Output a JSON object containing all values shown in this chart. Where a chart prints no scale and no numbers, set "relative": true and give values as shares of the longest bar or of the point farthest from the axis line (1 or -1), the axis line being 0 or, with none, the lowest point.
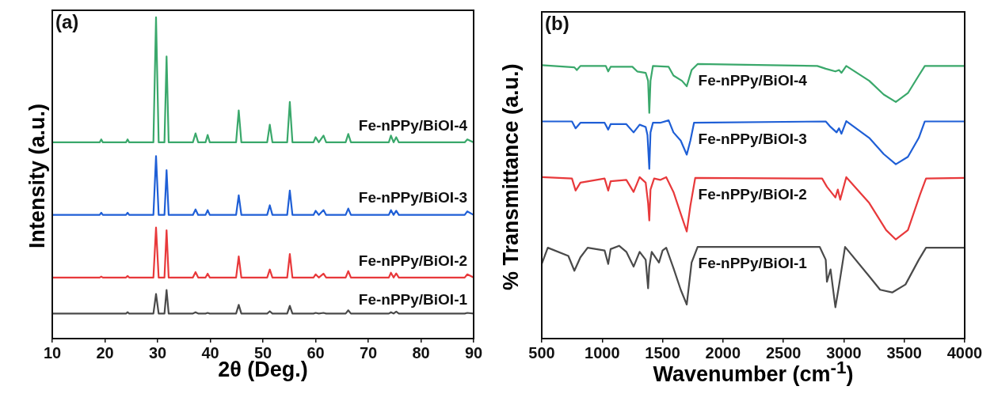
{
  "chart_data": [
    {
      "type": "line",
      "xlabel": "2θ (Deg.)",
      "ylabel": "Intensity (a.u.)",
      "annotations": [
        "(a)"
      ],
      "relative": true,
      "marker": "none",
      "xlim": [
        10,
        90
      ],
      "xticks": [
        10,
        20,
        30,
        40,
        50,
        60,
        70,
        80,
        90
      ],
      "x": [
        10,
        19.0,
        19.3,
        19.6,
        24.0,
        24.3,
        24.6,
        29.2,
        29.7,
        30.2,
        31.3,
        31.7,
        32.1,
        36.7,
        37.2,
        37.7,
        39.1,
        39.5,
        39.9,
        44.9,
        45.4,
        45.9,
        50.8,
        51.3,
        51.8,
        54.6,
        55.1,
        55.6,
        59.6,
        60.0,
        60.6,
        61.5,
        62.0,
        65.7,
        66.2,
        66.7,
        73.9,
        74.3,
        74.8,
        75.3,
        75.8,
        88.3,
        88.8,
        90
      ],
      "series": [
        {
          "name": "Fe-nPPy/BiOI-4",
          "color": "#3aa86b",
          "values": [
            0.611,
            0.611,
            0.62,
            0.611,
            0.611,
            0.62,
            0.611,
            0.611,
            1.0,
            0.611,
            0.611,
            0.878,
            0.611,
            0.611,
            0.639,
            0.611,
            0.611,
            0.634,
            0.611,
            0.611,
            0.71,
            0.611,
            0.611,
            0.666,
            0.611,
            0.611,
            0.737,
            0.611,
            0.611,
            0.627,
            0.611,
            0.632,
            0.611,
            0.611,
            0.637,
            0.611,
            0.611,
            0.632,
            0.611,
            0.627,
            0.611,
            0.611,
            0.62,
            0.611
          ]
        },
        {
          "name": "Fe-nPPy/BiOI-3",
          "color": "#1f5fd6",
          "values": [
            0.385,
            0.385,
            0.392,
            0.385,
            0.385,
            0.392,
            0.385,
            0.385,
            0.568,
            0.385,
            0.385,
            0.524,
            0.385,
            0.385,
            0.402,
            0.385,
            0.385,
            0.4,
            0.385,
            0.385,
            0.446,
            0.385,
            0.385,
            0.415,
            0.385,
            0.385,
            0.461,
            0.385,
            0.385,
            0.398,
            0.385,
            0.4,
            0.385,
            0.385,
            0.405,
            0.385,
            0.385,
            0.4,
            0.385,
            0.398,
            0.385,
            0.385,
            0.396,
            0.385
          ]
        },
        {
          "name": "Fe-nPPy/BiOI-2",
          "color": "#e8393b",
          "values": [
            0.19,
            0.19,
            0.193,
            0.19,
            0.19,
            0.195,
            0.19,
            0.19,
            0.346,
            0.19,
            0.19,
            0.337,
            0.19,
            0.19,
            0.207,
            0.19,
            0.19,
            0.202,
            0.19,
            0.19,
            0.256,
            0.19,
            0.19,
            0.215,
            0.19,
            0.19,
            0.263,
            0.19,
            0.19,
            0.2,
            0.19,
            0.202,
            0.19,
            0.19,
            0.21,
            0.19,
            0.19,
            0.205,
            0.19,
            0.203,
            0.19,
            0.19,
            0.2,
            0.19
          ]
        },
        {
          "name": "Fe-nPPy/BiOI-1",
          "color": "#4a4a4a",
          "values": [
            0.078,
            0.078,
            0.078,
            0.078,
            0.078,
            0.082,
            0.078,
            0.078,
            0.139,
            0.078,
            0.078,
            0.151,
            0.078,
            0.078,
            0.082,
            0.078,
            0.078,
            0.08,
            0.078,
            0.078,
            0.105,
            0.078,
            0.078,
            0.085,
            0.078,
            0.078,
            0.102,
            0.078,
            0.078,
            0.08,
            0.078,
            0.08,
            0.078,
            0.078,
            0.088,
            0.078,
            0.078,
            0.082,
            0.078,
            0.084,
            0.078,
            0.078,
            0.08,
            0.078
          ]
        }
      ]
    },
    {
      "type": "line",
      "xlabel": "Wavenumber (cm$^{-1}$)",
      "ylabel": "% Transmittance (a.u.)",
      "annotations": [
        "(b)"
      ],
      "relative": true,
      "marker": "none",
      "xlim": [
        500,
        4000
      ],
      "xticks": [
        500,
        1000,
        1500,
        2000,
        2500,
        3000,
        3500,
        4000
      ],
      "series": [
        {
          "name": "Fe-nPPy/BiOI-4",
          "color": "#3aa86b",
          "x": [
            500,
            770,
            790,
            820,
            1030,
            1050,
            1070,
            1250,
            1290,
            1360,
            1380,
            1390,
            1400,
            1420,
            1550,
            1590,
            1660,
            1700,
            1740,
            1790,
            2780,
            2850,
            2930,
            2960,
            2980,
            3020,
            3210,
            3330,
            3430,
            3530,
            3620,
            3670,
            4000
          ],
          "values": [
            0.996,
            0.988,
            0.978,
            0.993,
            0.993,
            0.973,
            0.99,
            0.99,
            0.973,
            0.968,
            0.939,
            0.822,
            0.939,
            0.993,
            0.99,
            0.958,
            0.939,
            0.919,
            0.978,
            1.0,
            0.993,
            0.983,
            0.973,
            0.978,
            0.968,
            0.993,
            0.939,
            0.889,
            0.862,
            0.894,
            0.958,
            0.993,
            0.993
          ]
        },
        {
          "name": "Fe-nPPy/BiOI-3",
          "color": "#1f5fd6",
          "x": [
            500,
            750,
            780,
            820,
            1020,
            1050,
            1070,
            1200,
            1260,
            1310,
            1360,
            1375,
            1390,
            1400,
            1420,
            1480,
            1550,
            1590,
            1650,
            1700,
            1730,
            1760,
            2850,
            2890,
            2940,
            2960,
            2980,
            3020,
            3210,
            3330,
            3430,
            3530,
            3620,
            3670,
            4000
          ],
          "values": [
            0.791,
            0.791,
            0.766,
            0.786,
            0.786,
            0.761,
            0.781,
            0.781,
            0.751,
            0.779,
            0.771,
            0.741,
            0.618,
            0.751,
            0.786,
            0.786,
            0.795,
            0.751,
            0.721,
            0.67,
            0.721,
            0.786,
            0.791,
            0.771,
            0.751,
            0.766,
            0.746,
            0.792,
            0.731,
            0.672,
            0.635,
            0.662,
            0.731,
            0.791,
            0.791
          ]
        },
        {
          "name": "Fe-nPPy/BiOI-2",
          "color": "#e8393b",
          "x": [
            500,
            750,
            780,
            820,
            1020,
            1050,
            1070,
            1200,
            1260,
            1310,
            1360,
            1380,
            1390,
            1400,
            1430,
            1480,
            1530,
            1590,
            1650,
            1700,
            1730,
            1770,
            2820,
            2860,
            2930,
            2950,
            2970,
            3020,
            3210,
            3350,
            3430,
            3530,
            3630,
            3680,
            4000
          ],
          "values": [
            0.588,
            0.583,
            0.539,
            0.568,
            0.583,
            0.539,
            0.573,
            0.578,
            0.534,
            0.588,
            0.568,
            0.494,
            0.43,
            0.543,
            0.583,
            0.578,
            0.588,
            0.534,
            0.455,
            0.39,
            0.484,
            0.585,
            0.583,
            0.553,
            0.514,
            0.543,
            0.506,
            0.588,
            0.494,
            0.395,
            0.361,
            0.395,
            0.524,
            0.583,
            0.585
          ]
        },
        {
          "name": "Fe-nPPy/BiOI-1",
          "color": "#4a4a4a",
          "x": [
            500,
            550,
            720,
            770,
            820,
            880,
            1020,
            1050,
            1070,
            1140,
            1200,
            1260,
            1310,
            1360,
            1380,
            1390,
            1410,
            1470,
            1500,
            1530,
            1590,
            1650,
            1700,
            1740,
            1790,
            2800,
            2850,
            2860,
            2890,
            2930,
            2960,
            3010,
            3210,
            3300,
            3400,
            3510,
            3620,
            3680,
            4000
          ],
          "values": [
            0.272,
            0.331,
            0.301,
            0.247,
            0.296,
            0.331,
            0.321,
            0.272,
            0.326,
            0.338,
            0.316,
            0.262,
            0.316,
            0.287,
            0.183,
            0.262,
            0.316,
            0.277,
            0.321,
            0.331,
            0.257,
            0.178,
            0.124,
            0.277,
            0.334,
            0.334,
            0.287,
            0.207,
            0.252,
            0.114,
            0.193,
            0.334,
            0.227,
            0.178,
            0.168,
            0.197,
            0.287,
            0.331,
            0.331
          ]
        }
      ]
    }
  ]
}
